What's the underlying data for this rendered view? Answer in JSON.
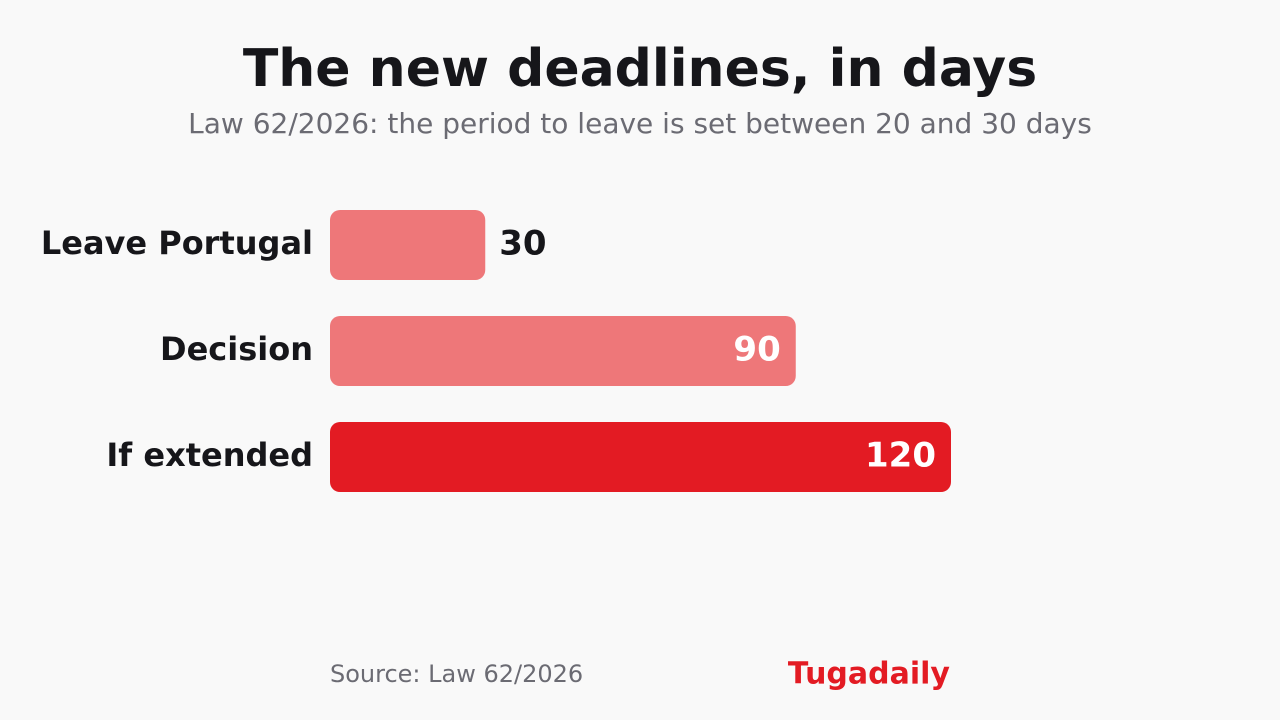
{
  "chart_data": {
    "type": "bar",
    "orientation": "horizontal",
    "title": "The new deadlines, in days",
    "subtitle": "Law 62/2026: the period to leave is set between 20 and 30 days",
    "categories": [
      "Leave Portugal",
      "Decision",
      "If extended"
    ],
    "values": [
      30,
      90,
      120
    ],
    "colors": [
      "#ee7779",
      "#ee7779",
      "#e31b23"
    ],
    "source": "Source: Law 62/2026",
    "brand": "Tugadaily"
  }
}
